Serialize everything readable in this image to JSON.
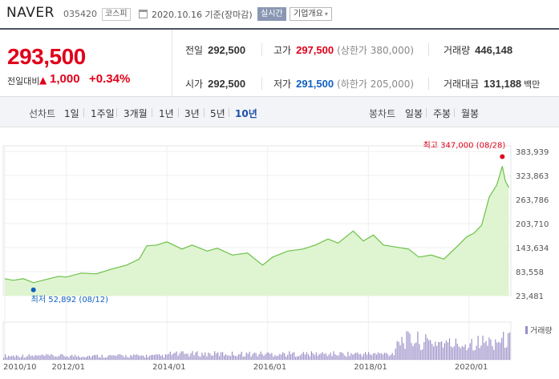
{
  "header": {
    "name": "NAVER",
    "code": "035420",
    "market": "코스피",
    "date": "2020.10.16 기준(장마감)",
    "realtime": "실시간",
    "company_info": "기업개요",
    "caret": "▾",
    "calendar_icon": "calendar-icon"
  },
  "price": {
    "current": "293,500",
    "change_label": "전일대비",
    "change_arrow": "▲",
    "change": "1,000",
    "change_pct": "+0.34%",
    "prev_close_label": "전일",
    "prev_close": "292,500",
    "high_label": "고가",
    "high": "297,500",
    "upper_limit": "(상한가 380,000)",
    "volume_label": "거래량",
    "volume": "446,148",
    "open_label": "시가",
    "open": "292,500",
    "low_label": "저가",
    "low": "291,500",
    "lower_limit": "(하한가 205,000)",
    "amount_label": "거래대금",
    "amount": "131,188",
    "amount_unit": "백만"
  },
  "periods": {
    "line_label": "선차트",
    "line_items": [
      "1일",
      "1주일",
      "3개월",
      "1년",
      "3년",
      "5년",
      "10년"
    ],
    "active": "10년",
    "candle_label": "봉차트",
    "candle_items": [
      "일봉",
      "주봉",
      "월봉"
    ]
  },
  "colors": {
    "price_up": "#e0001a",
    "price_down": "#1060c0",
    "line": "#6cc24a",
    "fill": "#dff4d0",
    "volume": "#9b8fc8"
  },
  "chart_data": {
    "type": "area",
    "y_ticks": [
      "383,939",
      "323,863",
      "263,786",
      "203,710",
      "143,634",
      "83,558",
      "23,481"
    ],
    "x_ticks": [
      "2010/10",
      "2012/01",
      "2014/01",
      "2016/01",
      "2018/01",
      "2020/01"
    ],
    "max_label": "최고 347,000 (08/28)",
    "min_label": "최저 52,892 (08/12)",
    "volume_label": "거래량",
    "ylim": [
      23481,
      383939
    ],
    "series": [
      {
        "x": [
          2010.78,
          2010.95,
          2011.15,
          2011.35,
          2011.6,
          2011.85,
          2012.0,
          2012.3,
          2012.6,
          2012.9,
          2013.2,
          2013.45,
          2013.6,
          2013.8,
          2014.0,
          2014.3,
          2014.5,
          2014.8,
          2015.0,
          2015.3,
          2015.6,
          2015.9,
          2016.1,
          2016.4,
          2016.7,
          2016.95,
          2017.2,
          2017.4,
          2017.7,
          2017.9,
          2018.1,
          2018.3,
          2018.55,
          2018.8,
          2019.0,
          2019.25,
          2019.5,
          2019.75,
          2019.95,
          2020.1,
          2020.25,
          2020.4,
          2020.55,
          2020.66,
          2020.72,
          2020.79
        ],
        "y": [
          66000,
          62000,
          66000,
          56000,
          64000,
          72000,
          70000,
          80000,
          78000,
          90000,
          100000,
          115000,
          148000,
          150000,
          158000,
          140000,
          150000,
          135000,
          142000,
          125000,
          130000,
          100000,
          120000,
          135000,
          140000,
          150000,
          165000,
          155000,
          185000,
          160000,
          175000,
          150000,
          145000,
          140000,
          120000,
          125000,
          115000,
          145000,
          170000,
          180000,
          200000,
          270000,
          300000,
          347000,
          310000,
          293500
        ]
      }
    ],
    "volume": {
      "x": [
        2011.0,
        2012.0,
        2013.0,
        2014.0,
        2015.0,
        2016.0,
        2017.0,
        2018.0,
        2018.5,
        2019.0,
        2019.5,
        2020.0,
        2020.5
      ],
      "y": [
        1,
        1,
        1,
        1.5,
        1.5,
        1.5,
        1.5,
        1.5,
        5,
        4.5,
        4,
        4.5,
        5
      ]
    }
  }
}
